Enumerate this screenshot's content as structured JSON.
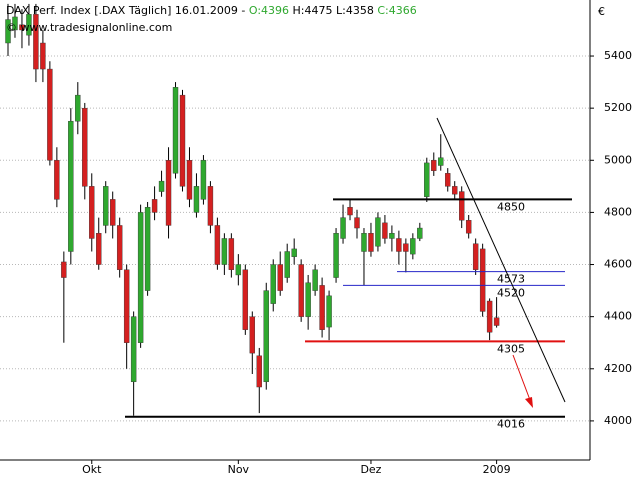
{
  "chart_data": {
    "type": "candlestick",
    "header": {
      "instrument": "DAX Perf. Index [.DAX  Täglich] 16.01.2009 - ",
      "open_label": "O:4396",
      "high_label": "H:4475",
      "low_label": "L:4358",
      "close_label": "C:4366",
      "copyright": "© www.tradesignalonline.com"
    },
    "y_axis_unit": "€",
    "categories": [
      null,
      null,
      null,
      null,
      null,
      null,
      null,
      null,
      null,
      null,
      null,
      null,
      "Okt",
      null,
      null,
      null,
      null,
      null,
      null,
      null,
      null,
      null,
      null,
      null,
      null,
      null,
      null,
      null,
      null,
      null,
      null,
      null,
      null,
      "Nov",
      null,
      null,
      null,
      null,
      null,
      null,
      null,
      null,
      null,
      null,
      null,
      null,
      null,
      null,
      null,
      null,
      null,
      null,
      "Dez",
      null,
      null,
      null,
      null,
      null,
      null,
      null,
      null,
      null,
      null,
      null,
      null,
      null,
      null,
      null,
      null,
      null,
      "2009"
    ],
    "open": [
      5450,
      5500,
      5520,
      5480,
      5560,
      5450,
      5350,
      5000,
      4610,
      4650,
      5150,
      5200,
      4900,
      4720,
      4750,
      4850,
      4750,
      4580,
      4150,
      4300,
      4500,
      4850,
      4880,
      5000,
      4950,
      5250,
      5000,
      4800,
      4850,
      4900,
      4750,
      4600,
      4700,
      4560,
      4580,
      4400,
      4250,
      4150,
      4450,
      4600,
      4550,
      4630,
      4600,
      4400,
      4500,
      4520,
      4360,
      4550,
      4700,
      4820,
      4780,
      4650,
      4720,
      4670,
      4760,
      4700,
      4700,
      4680,
      4640,
      4700,
      4860,
      5000,
      4980,
      4950,
      4900,
      4880,
      4770,
      4680,
      4660,
      4460,
      4396
    ],
    "high": [
      5600,
      5600,
      5580,
      5600,
      5600,
      5500,
      5380,
      5050,
      4650,
      5200,
      5300,
      5220,
      4950,
      4780,
      4920,
      4880,
      4780,
      4600,
      4420,
      4830,
      4840,
      4900,
      4960,
      5050,
      5300,
      5270,
      5050,
      4950,
      5020,
      4920,
      4780,
      4720,
      4720,
      4640,
      4600,
      4420,
      4280,
      4530,
      4620,
      4650,
      4680,
      4700,
      4620,
      4560,
      4600,
      4550,
      4500,
      4740,
      4830,
      4850,
      4810,
      4740,
      4760,
      4800,
      4790,
      4750,
      4730,
      4700,
      4720,
      4760,
      5010,
      5030,
      5100,
      4970,
      4920,
      4900,
      4790,
      4700,
      4680,
      4470,
      4475
    ],
    "low": [
      5400,
      5470,
      5430,
      5440,
      5300,
      5300,
      4980,
      4820,
      4300,
      4600,
      5100,
      4850,
      4650,
      4580,
      4720,
      4700,
      4550,
      4200,
      4020,
      4280,
      4480,
      4770,
      4860,
      4700,
      4930,
      4880,
      4820,
      4780,
      4830,
      4720,
      4580,
      4560,
      4550,
      4520,
      4330,
      4180,
      4030,
      4120,
      4420,
      4480,
      4530,
      4600,
      4380,
      4350,
      4480,
      4320,
      4310,
      4530,
      4680,
      4770,
      4700,
      4520,
      4630,
      4650,
      4680,
      4650,
      4600,
      4570,
      4620,
      4690,
      4840,
      4940,
      4960,
      4880,
      4850,
      4740,
      4700,
      4560,
      4400,
      4310,
      4358
    ],
    "close": [
      5540,
      5550,
      5500,
      5560,
      5350,
      5350,
      5000,
      4850,
      4550,
      5150,
      5250,
      4900,
      4700,
      4600,
      4900,
      4750,
      4580,
      4300,
      4400,
      4800,
      4820,
      4800,
      4920,
      4750,
      5280,
      4900,
      4850,
      4900,
      5000,
      4750,
      4600,
      4700,
      4580,
      4600,
      4350,
      4260,
      4130,
      4500,
      4600,
      4500,
      4650,
      4660,
      4400,
      4530,
      4580,
      4350,
      4480,
      4720,
      4780,
      4790,
      4740,
      4720,
      4650,
      4780,
      4700,
      4720,
      4650,
      4650,
      4700,
      4740,
      4990,
      4960,
      5010,
      4900,
      4870,
      4770,
      4720,
      4580,
      4420,
      4340,
      4366
    ],
    "up_color": "#2fa82f",
    "down_color": "#d42020",
    "levels": [
      {
        "value": 4850,
        "color": "#000000"
      },
      {
        "value": 4573,
        "color": "#2626c8"
      },
      {
        "value": 4520,
        "color": "#2626c8"
      },
      {
        "value": 4305,
        "color": "#e01010"
      },
      {
        "value": 4016,
        "color": "#000000"
      }
    ],
    "ylim": [
      3850,
      5615
    ],
    "yticks": [
      4000,
      4200,
      4400,
      4600,
      4800,
      5000,
      5200,
      5400
    ],
    "grid": true
  }
}
